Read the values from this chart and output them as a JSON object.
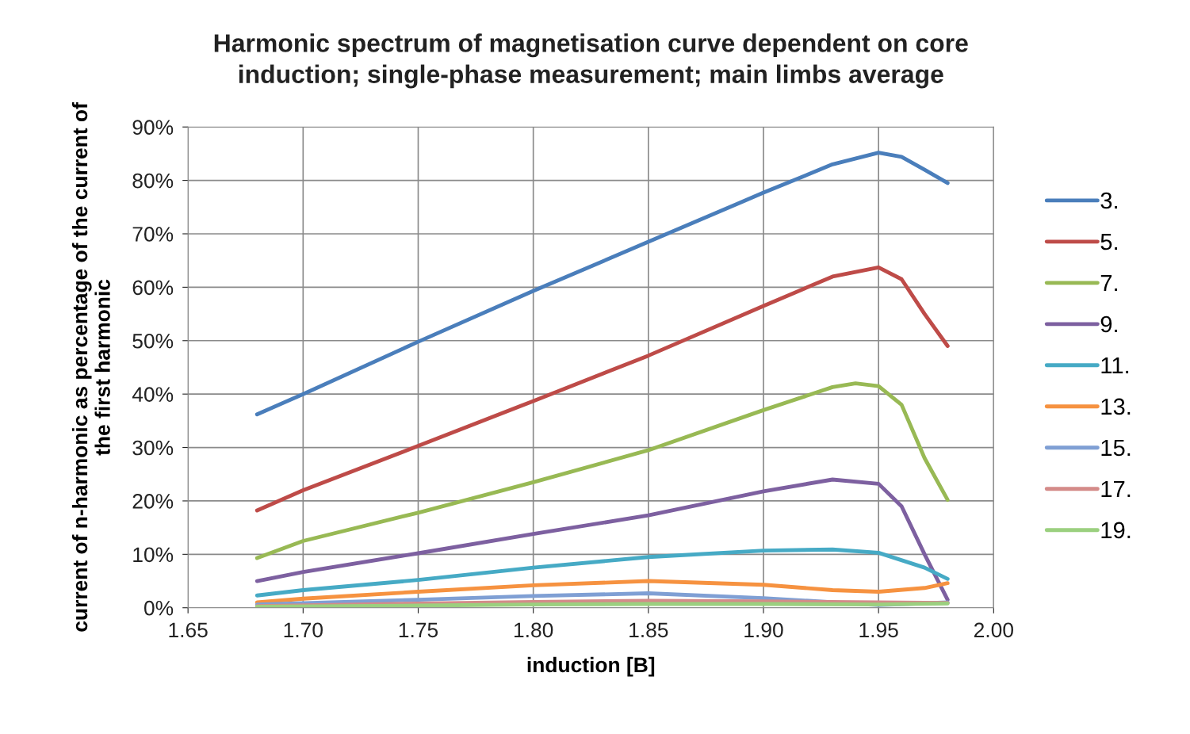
{
  "chart_data": {
    "type": "line",
    "title": "Harmonic spectrum of magnetisation curve dependent on core\ninduction; single-phase measurement; main limbs average",
    "xlabel": "induction [B]",
    "ylabel": "current of n-harmonic as percentage of the current of\nthe first harmonic",
    "xlim": [
      1.65,
      2.0
    ],
    "xticks": [
      {
        "value": 1.65,
        "label": "1.65"
      },
      {
        "value": 1.7,
        "label": "1.70"
      },
      {
        "value": 1.75,
        "label": "1.75"
      },
      {
        "value": 1.8,
        "label": "1.80"
      },
      {
        "value": 1.85,
        "label": "1.85"
      },
      {
        "value": 1.9,
        "label": "1.90"
      },
      {
        "value": 1.95,
        "label": "1.95"
      },
      {
        "value": 2.0,
        "label": "2.00"
      }
    ],
    "ylim": [
      0,
      90
    ],
    "yticks": [
      {
        "value": 0,
        "label": "0%"
      },
      {
        "value": 10,
        "label": "10%"
      },
      {
        "value": 20,
        "label": "20%"
      },
      {
        "value": 30,
        "label": "30%"
      },
      {
        "value": 40,
        "label": "40%"
      },
      {
        "value": 50,
        "label": "50%"
      },
      {
        "value": 60,
        "label": "60%"
      },
      {
        "value": 70,
        "label": "70%"
      },
      {
        "value": 80,
        "label": "80%"
      },
      {
        "value": 90,
        "label": "90%"
      }
    ],
    "grid": true,
    "legend": "right",
    "marker": "none",
    "line_style": "solid",
    "series": [
      {
        "name": "3.",
        "color": "#4a7ebb",
        "x": [
          1.68,
          1.7,
          1.75,
          1.8,
          1.85,
          1.9,
          1.93,
          1.95,
          1.96,
          1.97,
          1.98
        ],
        "values": [
          36.2,
          40,
          49.8,
          59.3,
          68.5,
          77.7,
          83,
          85.2,
          84.4,
          82,
          79.5
        ]
      },
      {
        "name": "5.",
        "color": "#be4b48",
        "x": [
          1.68,
          1.7,
          1.75,
          1.8,
          1.85,
          1.9,
          1.93,
          1.95,
          1.96,
          1.97,
          1.98
        ],
        "values": [
          18.2,
          22,
          30.3,
          38.7,
          47.2,
          56.5,
          62,
          63.7,
          61.5,
          55,
          49
        ]
      },
      {
        "name": "7.",
        "color": "#98b954",
        "x": [
          1.68,
          1.7,
          1.75,
          1.8,
          1.85,
          1.9,
          1.93,
          1.94,
          1.95,
          1.96,
          1.97,
          1.98
        ],
        "values": [
          9.3,
          12.5,
          17.8,
          23.5,
          29.5,
          37,
          41.3,
          42,
          41.5,
          38,
          28,
          20.2
        ]
      },
      {
        "name": "9.",
        "color": "#7d60a0",
        "x": [
          1.68,
          1.7,
          1.75,
          1.8,
          1.85,
          1.9,
          1.93,
          1.95,
          1.96,
          1.97,
          1.98
        ],
        "values": [
          5,
          6.7,
          10.2,
          13.8,
          17.3,
          21.8,
          24,
          23.2,
          19,
          10,
          1.5
        ]
      },
      {
        "name": "11.",
        "color": "#46aac5",
        "x": [
          1.68,
          1.7,
          1.75,
          1.8,
          1.85,
          1.9,
          1.93,
          1.95,
          1.97,
          1.98
        ],
        "values": [
          2.3,
          3.3,
          5.2,
          7.5,
          9.5,
          10.7,
          10.9,
          10.3,
          7.5,
          5.4
        ]
      },
      {
        "name": "13.",
        "color": "#f69240",
        "x": [
          1.68,
          1.7,
          1.75,
          1.8,
          1.85,
          1.9,
          1.93,
          1.95,
          1.97,
          1.98
        ],
        "values": [
          1,
          1.7,
          3,
          4.2,
          5,
          4.3,
          3.3,
          3,
          3.7,
          4.6
        ]
      },
      {
        "name": "15.",
        "color": "#7f9fd4",
        "x": [
          1.68,
          1.75,
          1.8,
          1.85,
          1.9,
          1.95,
          1.98
        ],
        "values": [
          0.6,
          1.5,
          2.2,
          2.7,
          1.8,
          0.5,
          1
        ]
      },
      {
        "name": "17.",
        "color": "#d48b89",
        "x": [
          1.68,
          1.75,
          1.8,
          1.85,
          1.9,
          1.95,
          1.98
        ],
        "values": [
          0.3,
          0.8,
          1.1,
          1.3,
          1.2,
          1.0,
          0.9
        ]
      },
      {
        "name": "19.",
        "color": "#9bd07f",
        "x": [
          1.68,
          1.75,
          1.8,
          1.85,
          1.9,
          1.95,
          1.98
        ],
        "values": [
          0.2,
          0.4,
          0.6,
          0.7,
          0.7,
          0.6,
          0.8
        ]
      }
    ]
  }
}
